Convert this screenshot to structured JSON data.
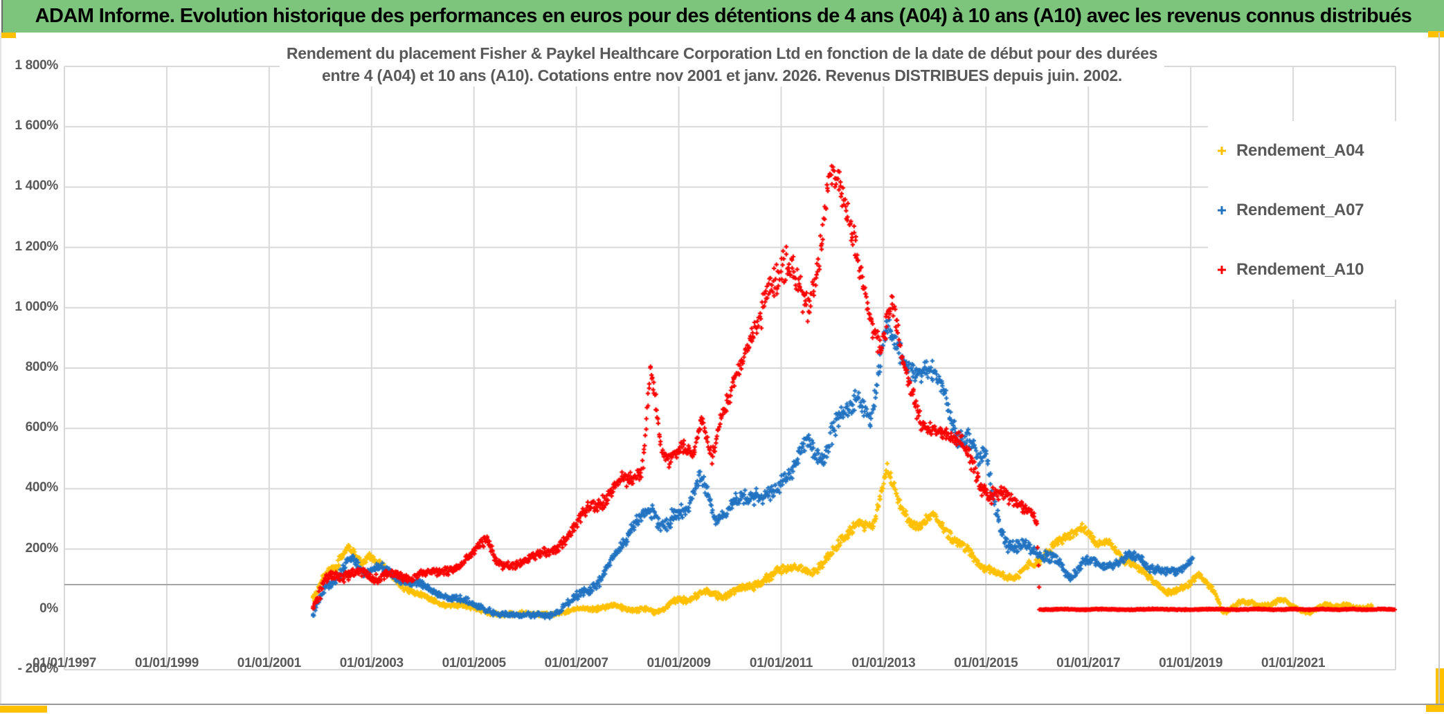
{
  "banner": {
    "title": "ADAM Informe. Evolution historique des performances en euros pour des détentions de 4 ans (A04) à 10 ans (A10) avec les revenus connus distribués"
  },
  "chart": {
    "title_line1": "Rendement du placement Fisher & Paykel Healthcare Corporation Ltd en fonction de la date de début pour des durées",
    "title_line2": "entre 4 (A04) et 10 ans (A10). Cotations entre nov 2001 et janv. 2026. Revenus DISTRIBUES depuis juin. 2002."
  },
  "colors": {
    "banner_bg": "#7DC57D",
    "accent_yellow": "#FFC000",
    "grid": "#D9D9D9",
    "grid_dark": "#A6A6A6",
    "text_gray": "#595959",
    "series_a04": "#FFC000",
    "series_a07": "#2173C2",
    "series_a10": "#FF0000"
  },
  "chart_data": {
    "type": "scatter",
    "title": "Rendement du placement Fisher & Paykel Healthcare Corporation Ltd en fonction de la date de début pour des durées entre 4 (A04) et 10 ans (A10). Cotations entre nov 2001 et janv. 2026. Revenus DISTRIBUES depuis juin. 2002.",
    "marker": "plus",
    "grid": true,
    "legend_position": "right-top",
    "x_axis": {
      "type": "date",
      "first_tick_year": 1997,
      "tick_step_years": 2,
      "axis_end_year": 2023,
      "tick_labels": [
        "01/01/1997",
        "01/01/1999",
        "01/01/2001",
        "01/01/2003",
        "01/01/2005",
        "01/01/2007",
        "01/01/2009",
        "01/01/2011",
        "01/01/2013",
        "01/01/2015",
        "01/01/2017",
        "01/01/2019",
        "01/01/2021"
      ]
    },
    "y_axis": {
      "unit": "%",
      "min": -200,
      "max": 1800,
      "step": 200,
      "skip_gridline_at": 0,
      "tick_labels": [
        "1 800%",
        "1 600%",
        "1 400%",
        "1 200%",
        "1 000%",
        "800%",
        "600%",
        "400%",
        "200%",
        "0%",
        "- 200%"
      ]
    },
    "series": [
      {
        "name": "Rendement_A04",
        "color": "#FFC000",
        "points_format": [
          "year_decimal",
          "rendement_pct",
          "cloud_spread_pct"
        ],
        "points": [
          [
            2001.85,
            45,
            25
          ],
          [
            2002.2,
            120,
            25
          ],
          [
            2002.5,
            205,
            20
          ],
          [
            2002.8,
            155,
            18
          ],
          [
            2002.95,
            185,
            15
          ],
          [
            2003.4,
            110,
            15
          ],
          [
            2003.9,
            45,
            15
          ],
          [
            2004.4,
            20,
            12
          ],
          [
            2005.0,
            0,
            12
          ],
          [
            2005.6,
            -15,
            10
          ],
          [
            2006.2,
            -18,
            10
          ],
          [
            2006.8,
            -8,
            10
          ],
          [
            2007.4,
            8,
            12
          ],
          [
            2008.0,
            5,
            12
          ],
          [
            2008.5,
            -8,
            12
          ],
          [
            2009.0,
            28,
            15
          ],
          [
            2009.5,
            55,
            15
          ],
          [
            2010.0,
            48,
            15
          ],
          [
            2010.5,
            88,
            18
          ],
          [
            2011.0,
            120,
            20
          ],
          [
            2011.35,
            150,
            20
          ],
          [
            2011.65,
            128,
            20
          ],
          [
            2012.0,
            180,
            22
          ],
          [
            2012.5,
            295,
            25
          ],
          [
            2012.8,
            280,
            25
          ],
          [
            2013.07,
            455,
            25
          ],
          [
            2013.35,
            330,
            25
          ],
          [
            2013.65,
            280,
            22
          ],
          [
            2013.95,
            300,
            22
          ],
          [
            2014.3,
            255,
            22
          ],
          [
            2014.6,
            195,
            20
          ],
          [
            2014.95,
            145,
            18
          ],
          [
            2015.25,
            112,
            15
          ],
          [
            2015.65,
            112,
            15
          ],
          [
            2016.0,
            165,
            18
          ],
          [
            2016.35,
            210,
            20
          ],
          [
            2016.85,
            280,
            20
          ],
          [
            2017.15,
            208,
            18
          ],
          [
            2017.4,
            232,
            18
          ],
          [
            2017.7,
            165,
            18
          ],
          [
            2018.1,
            115,
            18
          ],
          [
            2018.5,
            60,
            15
          ],
          [
            2018.95,
            78,
            15
          ],
          [
            2019.15,
            112,
            12
          ],
          [
            2019.45,
            60,
            12
          ],
          [
            2019.65,
            -8,
            10
          ],
          [
            2019.95,
            25,
            10
          ],
          [
            2020.35,
            10,
            10
          ],
          [
            2020.75,
            30,
            10
          ],
          [
            2021.05,
            6,
            8
          ],
          [
            2021.35,
            -15,
            8
          ],
          [
            2021.65,
            20,
            8
          ],
          [
            2022.0,
            10,
            8
          ],
          [
            2022.55,
            8,
            8
          ]
        ]
      },
      {
        "name": "Rendement_A07",
        "color": "#2173C2",
        "points_format": [
          "year_decimal",
          "rendement_pct",
          "cloud_spread_pct"
        ],
        "points": [
          [
            2001.85,
            -5,
            25
          ],
          [
            2002.2,
            80,
            25
          ],
          [
            2002.55,
            165,
            20
          ],
          [
            2002.85,
            125,
            20
          ],
          [
            2003.05,
            145,
            18
          ],
          [
            2003.5,
            105,
            18
          ],
          [
            2004.0,
            75,
            15
          ],
          [
            2004.5,
            45,
            15
          ],
          [
            2005.0,
            10,
            15
          ],
          [
            2005.5,
            -10,
            12
          ],
          [
            2006.0,
            -25,
            12
          ],
          [
            2006.5,
            -15,
            12
          ],
          [
            2007.0,
            35,
            18
          ],
          [
            2007.4,
            90,
            22
          ],
          [
            2007.8,
            180,
            25
          ],
          [
            2008.1,
            290,
            30
          ],
          [
            2008.5,
            320,
            35
          ],
          [
            2008.8,
            280,
            35
          ],
          [
            2009.1,
            330,
            35
          ],
          [
            2009.4,
            440,
            30
          ],
          [
            2009.7,
            310,
            35
          ],
          [
            2010.1,
            350,
            35
          ],
          [
            2010.5,
            390,
            35
          ],
          [
            2010.9,
            380,
            35
          ],
          [
            2011.2,
            450,
            40
          ],
          [
            2011.5,
            600,
            50
          ],
          [
            2011.8,
            480,
            40
          ],
          [
            2012.1,
            610,
            45
          ],
          [
            2012.5,
            720,
            45
          ],
          [
            2012.75,
            640,
            40
          ],
          [
            2013.05,
            930,
            45
          ],
          [
            2013.3,
            840,
            50
          ],
          [
            2013.6,
            810,
            50
          ],
          [
            2013.9,
            780,
            45
          ],
          [
            2014.2,
            740,
            45
          ],
          [
            2014.45,
            560,
            50
          ],
          [
            2014.7,
            540,
            45
          ],
          [
            2015.0,
            520,
            45
          ],
          [
            2015.2,
            300,
            45
          ],
          [
            2015.4,
            230,
            35
          ],
          [
            2015.7,
            200,
            30
          ],
          [
            2016.1,
            190,
            25
          ],
          [
            2016.65,
            110,
            22
          ],
          [
            2016.9,
            160,
            20
          ],
          [
            2017.3,
            140,
            22
          ],
          [
            2017.8,
            185,
            22
          ],
          [
            2018.2,
            130,
            20
          ],
          [
            2018.6,
            135,
            18
          ],
          [
            2018.9,
            140,
            18
          ],
          [
            2019.05,
            165,
            15
          ]
        ]
      },
      {
        "name": "Rendement_A10",
        "color": "#FF0000",
        "points_format": [
          "year_decimal",
          "rendement_pct",
          "cloud_spread_pct"
        ],
        "points": [
          [
            2001.85,
            20,
            30
          ],
          [
            2002.1,
            90,
            30
          ],
          [
            2002.5,
            120,
            25
          ],
          [
            2003.0,
            112,
            20
          ],
          [
            2003.6,
            108,
            18
          ],
          [
            2004.2,
            118,
            18
          ],
          [
            2004.75,
            150,
            20
          ],
          [
            2005.25,
            225,
            22
          ],
          [
            2005.45,
            155,
            20
          ],
          [
            2005.9,
            155,
            18
          ],
          [
            2006.5,
            190,
            20
          ],
          [
            2007.0,
            280,
            25
          ],
          [
            2007.3,
            340,
            28
          ],
          [
            2007.65,
            390,
            30
          ],
          [
            2008.0,
            430,
            35
          ],
          [
            2008.3,
            480,
            38
          ],
          [
            2008.45,
            780,
            40
          ],
          [
            2008.7,
            520,
            40
          ],
          [
            2009.0,
            510,
            35
          ],
          [
            2009.3,
            540,
            35
          ],
          [
            2009.45,
            640,
            30
          ],
          [
            2009.65,
            480,
            35
          ],
          [
            2009.85,
            660,
            35
          ],
          [
            2010.05,
            745,
            35
          ],
          [
            2010.3,
            830,
            45
          ],
          [
            2010.5,
            940,
            60
          ],
          [
            2010.75,
            1090,
            80
          ],
          [
            2011.0,
            1110,
            95
          ],
          [
            2011.3,
            1070,
            85
          ],
          [
            2011.55,
            1020,
            70
          ],
          [
            2011.75,
            1200,
            80
          ],
          [
            2011.95,
            1470,
            55
          ],
          [
            2012.15,
            1380,
            60
          ],
          [
            2012.45,
            1180,
            60
          ],
          [
            2012.7,
            1000,
            55
          ],
          [
            2012.95,
            880,
            45
          ],
          [
            2013.15,
            1010,
            50
          ],
          [
            2013.4,
            790,
            45
          ],
          [
            2013.75,
            630,
            40
          ],
          [
            2014.1,
            570,
            35
          ],
          [
            2014.5,
            585,
            35
          ],
          [
            2014.8,
            430,
            40
          ],
          [
            2015.15,
            380,
            35
          ],
          [
            2015.55,
            370,
            30
          ],
          [
            2015.9,
            310,
            25
          ],
          [
            2016.0,
            280,
            15
          ],
          [
            2016.05,
            0,
            2
          ],
          [
            2023.0,
            0,
            2
          ]
        ]
      }
    ]
  }
}
